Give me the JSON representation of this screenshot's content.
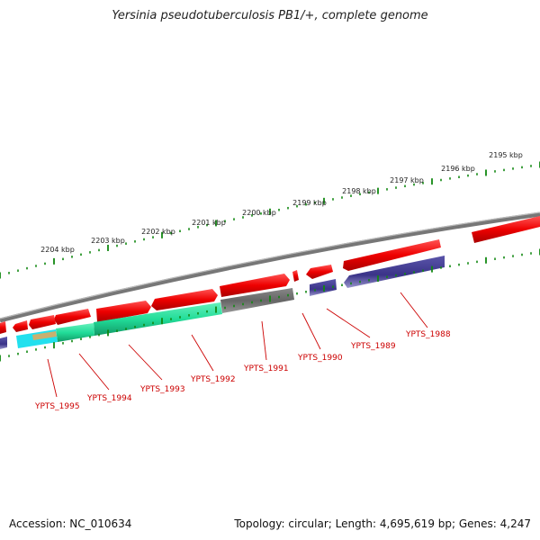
{
  "title": "Yersinia pseudotuberculosis PB1/+, complete genome",
  "footer": {
    "accession": "Accession: NC_010634",
    "topology": "Topology: circular; Length: 4,695,619 bp; Genes: 4,247"
  },
  "kbp_ticks": [
    "2195 kbp",
    "2196 kbp",
    "2197 kbp",
    "2198 kbp",
    "2199 kbp",
    "2200 kbp",
    "2201 kbp",
    "2202 kbp",
    "2203 kbp",
    "2204 kbp"
  ],
  "gene_labels": [
    "YPTS_1988",
    "YPTS_1989",
    "YPTS_1990",
    "YPTS_1991",
    "YPTS_1992",
    "YPTS_1993",
    "YPTS_1994",
    "YPTS_1995"
  ],
  "colors": {
    "forward_gene": "#ee0000",
    "reverse_gene": "#3a3388",
    "backbone": "#777777",
    "tick": "#118811",
    "label": "#cc0000",
    "rna": "#22dd99",
    "cyan_feature": "#22e0ee",
    "tan_feature": "#c8b070",
    "gray_feature": "#666666"
  }
}
